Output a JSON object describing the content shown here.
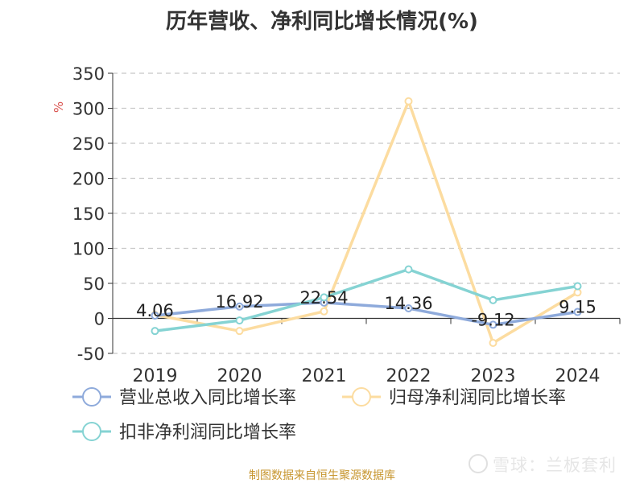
{
  "title": "历年营收、净利同比增长情况(%)",
  "source": "制图数据来自恒生聚源数据库",
  "watermark": "雪球：兰板套利",
  "chart_data": {
    "type": "line",
    "title": "历年营收、净利同比增长情况(%)",
    "ylabel": "%",
    "xlabel": "",
    "categories": [
      "2019",
      "2020",
      "2021",
      "2022",
      "2023",
      "2024"
    ],
    "ylim": [
      -50,
      350
    ],
    "yticks": [
      350,
      300,
      250,
      200,
      150,
      100,
      50,
      0,
      -50
    ],
    "grid": true,
    "legend_position": "bottom",
    "series": [
      {
        "name": "营业总收入同比增长率",
        "color": "#8eaadb",
        "values": [
          4.06,
          16.92,
          22.54,
          14.36,
          -9.12,
          9.15
        ],
        "labels": [
          "4.06",
          "16.92",
          "22.54",
          "14.36",
          "-9.12",
          "9.15"
        ]
      },
      {
        "name": "归母净利润同比增长率",
        "color": "#fcdca0",
        "values": [
          5,
          -18,
          10,
          310,
          -35,
          37
        ]
      },
      {
        "name": "扣非净利润同比增长率",
        "color": "#85d3d3",
        "values": [
          -18,
          -3,
          30,
          70,
          26,
          46
        ]
      }
    ]
  }
}
